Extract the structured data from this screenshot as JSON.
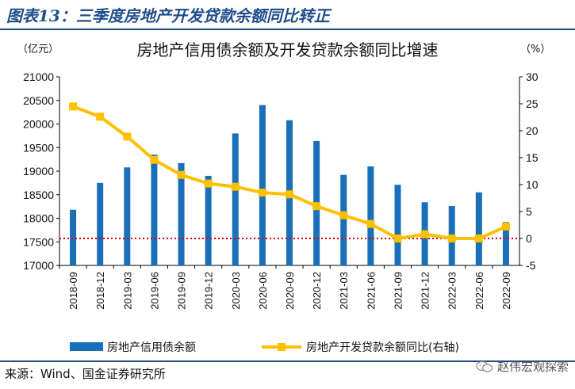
{
  "figure_title": "图表13：三季度房地产开发贷款余额同比转正",
  "source": "来源：Wind、国金证券研究所",
  "watermark": "赵伟宏观探索",
  "colors": {
    "bar": "#1a6fb9",
    "line": "#ffc000",
    "zero_line": "#e00000",
    "rule": "#1f4e8c"
  },
  "icons": {
    "watermark_icon": "wechat-icon"
  },
  "chart_data": {
    "type": "bar+line",
    "title": "房地产信用债余额及开发贷款余额同比增速",
    "left_unit": "（亿元）",
    "right_unit": "（%）",
    "categories": [
      "2018-09",
      "2018-12",
      "2019-03",
      "2019-06",
      "2019-09",
      "2019-12",
      "2020-03",
      "2020-06",
      "2020-09",
      "2020-12",
      "2021-03",
      "2021-06",
      "2021-09",
      "2021-12",
      "2022-03",
      "2022-06",
      "2022-09"
    ],
    "series": [
      {
        "name": "房地产信用债余额",
        "type": "bar",
        "axis": "left",
        "values": [
          18180,
          18750,
          19080,
          19350,
          19170,
          18900,
          19800,
          20400,
          20080,
          19640,
          18920,
          19100,
          18710,
          18340,
          18260,
          18550,
          17920
        ]
      },
      {
        "name": "房地产开发贷款余额同比(右轴)",
        "type": "line",
        "axis": "right",
        "values": [
          24.5,
          22.6,
          18.9,
          14.6,
          11.8,
          10.2,
          9.6,
          8.5,
          8.2,
          6.0,
          4.3,
          2.7,
          0.0,
          0.8,
          0.0,
          0.0,
          2.2
        ]
      }
    ],
    "reference_line": {
      "axis": "right",
      "value": 0,
      "style": "dotted"
    },
    "y_left": {
      "min": 17000,
      "max": 21000,
      "ticks": [
        17000,
        17500,
        18000,
        18500,
        19000,
        19500,
        20000,
        20500,
        21000
      ]
    },
    "y_right": {
      "min": -5,
      "max": 30,
      "ticks": [
        -5,
        0,
        5,
        10,
        15,
        20,
        25,
        30
      ]
    },
    "legend_position": "bottom",
    "grid": false
  }
}
